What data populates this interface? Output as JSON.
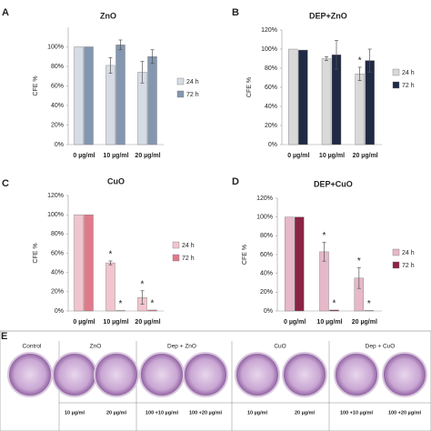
{
  "chart_data": [
    {
      "type": "bar",
      "panel": "A",
      "title": "ZnO",
      "ylabel": "CFE %",
      "categories": [
        "0 µg/ml",
        "10 µg/ml",
        "20 µg/ml"
      ],
      "series": [
        {
          "name": "24 h",
          "color": "#d6dce5",
          "values": [
            100,
            81,
            74
          ],
          "errors": [
            0,
            8,
            11
          ],
          "markers": [
            null,
            null,
            null
          ]
        },
        {
          "name": "72 h",
          "color": "#8497b0",
          "values": [
            100,
            102,
            90
          ],
          "errors": [
            0,
            5,
            7
          ],
          "markers": [
            null,
            null,
            null
          ]
        }
      ],
      "ylim": [
        0,
        120
      ],
      "yticks": [
        {
          "value": 0,
          "label": "0%"
        },
        {
          "value": 20,
          "label": "20%"
        },
        {
          "value": 40,
          "label": "40%"
        },
        {
          "value": 60,
          "label": "60%"
        },
        {
          "value": 80,
          "label": "80%"
        },
        {
          "value": 100,
          "label": "100%"
        }
      ]
    },
    {
      "type": "bar",
      "panel": "B",
      "title": "DEP+ZnO",
      "ylabel": "CFE %",
      "categories": [
        "0 µg/ml",
        "10 µg/ml",
        "20 µg/ml"
      ],
      "series": [
        {
          "name": "24 h",
          "color": "#d9d9d9",
          "values": [
            100,
            90,
            74
          ],
          "errors": [
            0,
            2,
            7
          ],
          "markers": [
            null,
            null,
            "*"
          ]
        },
        {
          "name": "72 h",
          "color": "#1f2a44",
          "values": [
            99,
            94,
            88
          ],
          "errors": [
            0,
            15,
            12
          ],
          "markers": [
            null,
            null,
            null
          ]
        }
      ],
      "ylim": [
        0,
        120
      ],
      "yticks": [
        {
          "value": 0,
          "label": "0%"
        },
        {
          "value": 20,
          "label": "20%"
        },
        {
          "value": 40,
          "label": "40%"
        },
        {
          "value": 60,
          "label": "60%"
        },
        {
          "value": 80,
          "label": "80%"
        },
        {
          "value": 100,
          "label": "100%"
        },
        {
          "value": 120,
          "label": "120%"
        }
      ]
    },
    {
      "type": "bar",
      "panel": "C",
      "title": "CuO",
      "ylabel": "CFE %",
      "categories": [
        "0 µg/ml",
        "10 µg/ml",
        "20 µg/ml"
      ],
      "series": [
        {
          "name": "24 h",
          "color": "#f2c4ce",
          "values": [
            100,
            50,
            14
          ],
          "errors": [
            0,
            2,
            7
          ],
          "markers": [
            null,
            "*",
            "*"
          ]
        },
        {
          "name": "72 h",
          "color": "#e07a8a",
          "values": [
            100,
            0.5,
            1
          ],
          "errors": [
            0,
            0,
            0
          ],
          "markers": [
            null,
            "*",
            "*"
          ]
        }
      ],
      "ylim": [
        0,
        120
      ],
      "yticks": [
        {
          "value": 0,
          "label": "0%"
        },
        {
          "value": 20,
          "label": "20%"
        },
        {
          "value": 40,
          "label": "40%"
        },
        {
          "value": 60,
          "label": "60%"
        },
        {
          "value": 80,
          "label": "80%"
        },
        {
          "value": 100,
          "label": "100%"
        },
        {
          "value": 120,
          "label": "120%"
        }
      ]
    },
    {
      "type": "bar",
      "panel": "D",
      "title": "DEP+CuO",
      "ylabel": "CFE %",
      "categories": [
        "0 µg/ml",
        "10 µg/ml",
        "20 µg/ml"
      ],
      "series": [
        {
          "name": "24 h",
          "color": "#e6b8c9",
          "values": [
            100,
            63,
            35
          ],
          "errors": [
            0,
            10,
            11
          ],
          "markers": [
            null,
            "*",
            "*"
          ]
        },
        {
          "name": "72 h",
          "color": "#8b2345",
          "values": [
            100,
            1,
            0.5
          ],
          "errors": [
            0,
            0,
            0
          ],
          "markers": [
            null,
            "*",
            "*"
          ]
        }
      ],
      "ylim": [
        0,
        120
      ],
      "yticks": [
        {
          "value": 0,
          "label": "0%"
        },
        {
          "value": 20,
          "label": "20%"
        },
        {
          "value": 40,
          "label": "40%"
        },
        {
          "value": 60,
          "label": "60%"
        },
        {
          "value": 80,
          "label": "80%"
        },
        {
          "value": 100,
          "label": "100%"
        },
        {
          "value": 120,
          "label": "120%"
        }
      ]
    }
  ],
  "photo_panel": {
    "panel": "E",
    "groups": [
      "Control",
      "ZnO",
      "Dep + ZnO",
      "CuO",
      "Dep + CuO"
    ],
    "doses": [
      "10 µg/ml",
      "20 µg/ml",
      "100 +10 µg/ml",
      "100 +20 µg/ml",
      "10 µg/ml",
      "20 µg/ml",
      "100 +10 µg/ml",
      "100 +20 µg/ml"
    ]
  }
}
